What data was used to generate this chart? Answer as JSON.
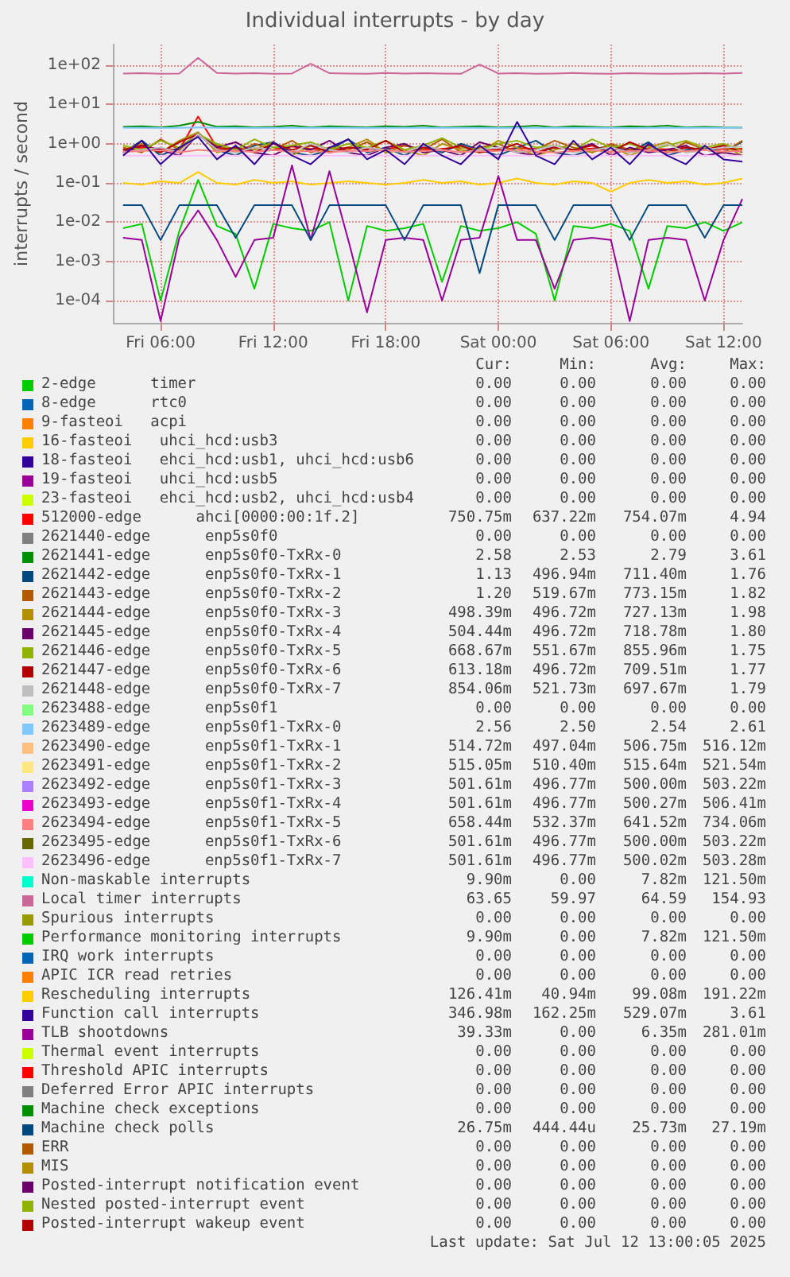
{
  "chart_data": {
    "type": "line",
    "title": "Individual interrupts - by day",
    "ylabel": "interrupts / second",
    "log": "y",
    "grid": true,
    "legend": "bottom",
    "xlim": [
      "2025-07-11T03:30",
      "2025-07-12T13:00"
    ],
    "xticks": [
      {
        "value": "2025-07-11T06:00",
        "label": "Fri 06:00"
      },
      {
        "value": "2025-07-11T12:00",
        "label": "Fri 12:00"
      },
      {
        "value": "2025-07-11T18:00",
        "label": "Fri 18:00"
      },
      {
        "value": "2025-07-12T00:00",
        "label": "Sat 00:00"
      },
      {
        "value": "2025-07-12T06:00",
        "label": "Sat 06:00"
      },
      {
        "value": "2025-07-12T12:00",
        "label": "Sat 12:00"
      }
    ],
    "ylim": [
      2.7e-05,
      340
    ],
    "yticks": [
      {
        "value": 0.0001,
        "label": "1e-04"
      },
      {
        "value": 0.001,
        "label": "1e-03"
      },
      {
        "value": 0.01,
        "label": "1e-02"
      },
      {
        "value": 0.1,
        "label": "1e-01"
      },
      {
        "value": 1,
        "label": "1e+00"
      },
      {
        "value": 10,
        "label": "1e+01"
      },
      {
        "value": 100,
        "label": "1e+02"
      }
    ],
    "x": [
      "2025-07-11T04:00",
      "2025-07-11T05:00",
      "2025-07-11T06:00",
      "2025-07-11T07:00",
      "2025-07-11T08:00",
      "2025-07-11T09:00",
      "2025-07-11T10:00",
      "2025-07-11T11:00",
      "2025-07-11T12:00",
      "2025-07-11T13:00",
      "2025-07-11T14:00",
      "2025-07-11T15:00",
      "2025-07-11T16:00",
      "2025-07-11T17:00",
      "2025-07-11T18:00",
      "2025-07-11T19:00",
      "2025-07-11T20:00",
      "2025-07-11T21:00",
      "2025-07-11T22:00",
      "2025-07-11T23:00",
      "2025-07-12T00:00",
      "2025-07-12T01:00",
      "2025-07-12T02:00",
      "2025-07-12T03:00",
      "2025-07-12T04:00",
      "2025-07-12T05:00",
      "2025-07-12T06:00",
      "2025-07-12T07:00",
      "2025-07-12T08:00",
      "2025-07-12T09:00",
      "2025-07-12T10:00",
      "2025-07-12T11:00",
      "2025-07-12T12:00",
      "2025-07-12T13:00"
    ],
    "series": [
      {
        "name": "2-edge      timer",
        "color": "#00cc00",
        "values": [
          null,
          null,
          null,
          null,
          null,
          null,
          null,
          null,
          null,
          null,
          null,
          null,
          null,
          null,
          null,
          null,
          null,
          null,
          null,
          null,
          null,
          null,
          null,
          null,
          null,
          null,
          null,
          null,
          null,
          null,
          null,
          null,
          null,
          null
        ]
      },
      {
        "name": "8-edge      rtc0",
        "color": "#0066b3",
        "values": [
          null,
          null,
          null,
          null,
          null,
          null,
          null,
          null,
          null,
          null,
          null,
          null,
          null,
          null,
          null,
          null,
          null,
          null,
          null,
          null,
          null,
          null,
          null,
          null,
          null,
          null,
          null,
          null,
          null,
          null,
          null,
          null,
          null,
          null
        ]
      },
      {
        "name": "9-fasteoi   acpi",
        "color": "#ff8000",
        "values": [
          null,
          null,
          null,
          null,
          null,
          null,
          null,
          null,
          null,
          null,
          null,
          null,
          null,
          null,
          null,
          null,
          null,
          null,
          null,
          null,
          null,
          null,
          null,
          null,
          null,
          null,
          null,
          null,
          null,
          null,
          null,
          null,
          null,
          null
        ]
      },
      {
        "name": "16-fasteoi   uhci_hcd:usb3",
        "color": "#ffcc00",
        "values": [
          null,
          null,
          null,
          null,
          null,
          null,
          null,
          null,
          null,
          null,
          null,
          null,
          null,
          null,
          null,
          null,
          null,
          null,
          null,
          null,
          null,
          null,
          null,
          null,
          null,
          null,
          null,
          null,
          null,
          null,
          null,
          null,
          null,
          null
        ]
      },
      {
        "name": "18-fasteoi   ehci_hcd:usb1, uhci_hcd:usb6",
        "color": "#330099",
        "values": [
          null,
          null,
          null,
          null,
          null,
          null,
          null,
          null,
          null,
          null,
          null,
          null,
          null,
          null,
          null,
          null,
          null,
          null,
          null,
          null,
          null,
          null,
          null,
          null,
          null,
          null,
          null,
          null,
          null,
          null,
          null,
          null,
          null,
          null
        ]
      },
      {
        "name": "19-fasteoi   uhci_hcd:usb5",
        "color": "#990099",
        "values": [
          null,
          null,
          null,
          null,
          null,
          null,
          null,
          null,
          null,
          null,
          null,
          null,
          null,
          null,
          null,
          null,
          null,
          null,
          null,
          null,
          null,
          null,
          null,
          null,
          null,
          null,
          null,
          null,
          null,
          null,
          null,
          null,
          null,
          null
        ]
      },
      {
        "name": "23-fasteoi   ehci_hcd:usb2, uhci_hcd:usb4",
        "color": "#ccff00",
        "values": [
          null,
          null,
          null,
          null,
          null,
          null,
          null,
          null,
          null,
          null,
          null,
          null,
          null,
          null,
          null,
          null,
          null,
          null,
          null,
          null,
          null,
          null,
          null,
          null,
          null,
          null,
          null,
          null,
          null,
          null,
          null,
          null,
          null,
          null
        ]
      },
      {
        "name": "512000-edge      ahci[0000:00:1f.2]",
        "color": "#ff0000",
        "values": [
          0.7,
          0.8,
          0.75,
          0.7,
          4.94,
          0.8,
          0.72,
          0.78,
          0.7,
          0.85,
          0.74,
          0.7,
          0.8,
          0.76,
          0.72,
          0.9,
          0.7,
          0.75,
          0.8,
          0.72,
          0.7,
          0.78,
          0.74,
          0.8,
          0.7,
          0.76,
          0.82,
          0.7,
          0.75,
          0.72,
          0.8,
          0.7,
          0.74,
          0.75
        ]
      },
      {
        "name": "2621440-edge      enp5s0f0",
        "color": "#808080",
        "values": [
          null,
          null,
          null,
          null,
          null,
          null,
          null,
          null,
          null,
          null,
          null,
          null,
          null,
          null,
          null,
          null,
          null,
          null,
          null,
          null,
          null,
          null,
          null,
          null,
          null,
          null,
          null,
          null,
          null,
          null,
          null,
          null,
          null,
          null
        ]
      },
      {
        "name": "2621441-edge      enp5s0f0-TxRx-0",
        "color": "#008f00",
        "values": [
          2.7,
          2.8,
          2.6,
          2.9,
          3.61,
          2.7,
          2.8,
          2.6,
          2.7,
          2.9,
          2.6,
          2.8,
          2.7,
          2.6,
          2.8,
          2.7,
          2.9,
          2.6,
          2.7,
          2.8,
          2.6,
          2.7,
          2.9,
          2.6,
          2.8,
          2.7,
          2.6,
          2.8,
          2.7,
          2.9,
          2.6,
          2.7,
          2.6,
          2.58
        ]
      },
      {
        "name": "2621442-edge      enp5s0f0-TxRx-1",
        "color": "#00487d",
        "values": [
          0.6,
          1.2,
          0.5,
          0.8,
          1.76,
          0.7,
          0.5,
          0.9,
          1.1,
          0.6,
          0.5,
          0.7,
          1.3,
          0.6,
          0.8,
          0.5,
          0.9,
          0.6,
          1.0,
          0.7,
          0.5,
          0.8,
          1.2,
          0.6,
          0.5,
          0.7,
          0.9,
          0.6,
          1.1,
          0.5,
          0.7,
          0.8,
          0.6,
          1.13
        ]
      },
      {
        "name": "2621443-edge      enp5s0f0-TxRx-2",
        "color": "#b35a00",
        "values": [
          0.8,
          0.6,
          1.3,
          0.7,
          1.82,
          0.9,
          0.6,
          1.0,
          0.7,
          1.2,
          0.6,
          0.8,
          0.7,
          1.1,
          0.6,
          0.9,
          0.7,
          1.3,
          0.6,
          0.8,
          1.0,
          0.6,
          0.7,
          1.2,
          0.8,
          0.6,
          1.0,
          0.7,
          0.9,
          0.6,
          1.1,
          0.7,
          0.6,
          1.2
        ]
      },
      {
        "name": "2621444-edge      enp5s0f0-TxRx-3",
        "color": "#b38f00",
        "values": [
          0.7,
          1.0,
          0.6,
          1.2,
          1.98,
          0.6,
          0.8,
          0.7,
          1.1,
          0.5,
          0.9,
          0.6,
          0.8,
          1.3,
          0.6,
          0.7,
          0.5,
          1.0,
          0.7,
          0.6,
          1.2,
          0.8,
          0.5,
          0.7,
          1.0,
          0.6,
          0.9,
          0.5,
          0.8,
          1.1,
          0.6,
          0.7,
          0.9,
          0.5
        ]
      },
      {
        "name": "2621445-edge      enp5s0f0-TxRx-4",
        "color": "#6b006b",
        "values": [
          0.6,
          0.9,
          0.7,
          0.5,
          1.8,
          0.8,
          1.1,
          0.6,
          0.5,
          0.9,
          0.7,
          1.2,
          0.6,
          0.5,
          0.8,
          1.0,
          0.6,
          0.7,
          0.5,
          1.1,
          0.8,
          0.6,
          0.5,
          0.9,
          0.7,
          1.0,
          0.5,
          0.8,
          0.6,
          0.7,
          0.9,
          0.5,
          0.6,
          0.5
        ]
      },
      {
        "name": "2621446-edge      enp5s0f0-TxRx-5",
        "color": "#8fb300",
        "values": [
          0.9,
          0.7,
          1.2,
          0.8,
          1.75,
          1.0,
          0.7,
          1.3,
          0.8,
          0.9,
          1.1,
          0.7,
          1.0,
          0.8,
          1.2,
          0.7,
          0.9,
          1.4,
          0.8,
          0.7,
          1.0,
          1.2,
          0.8,
          0.9,
          0.7,
          1.3,
          0.8,
          1.0,
          0.7,
          0.9,
          1.2,
          0.8,
          1.0,
          0.67
        ]
      },
      {
        "name": "2621447-edge      enp5s0f0-TxRx-6",
        "color": "#b30000",
        "values": [
          0.7,
          0.9,
          0.6,
          1.1,
          1.77,
          0.7,
          0.8,
          0.6,
          1.0,
          0.7,
          0.9,
          0.6,
          0.8,
          0.7,
          1.2,
          0.6,
          0.8,
          0.7,
          0.9,
          0.6,
          0.7,
          1.0,
          0.6,
          0.8,
          0.7,
          0.9,
          0.6,
          1.1,
          0.7,
          0.6,
          0.8,
          0.7,
          0.9,
          0.61
        ]
      },
      {
        "name": "2621448-edge      enp5s0f0-TxRx-7",
        "color": "#bebebe",
        "values": [
          0.6,
          0.7,
          0.8,
          0.6,
          1.79,
          0.7,
          0.6,
          0.8,
          0.7,
          0.6,
          1.0,
          0.7,
          0.6,
          0.8,
          0.7,
          0.6,
          0.9,
          0.7,
          0.6,
          0.7,
          0.8,
          0.6,
          0.7,
          0.9,
          0.6,
          0.7,
          0.8,
          0.6,
          0.7,
          1.0,
          0.6,
          0.7,
          0.8,
          0.85
        ]
      },
      {
        "name": "2623488-edge      enp5s0f1",
        "color": "#80ff80",
        "values": [
          null,
          null,
          null,
          null,
          null,
          null,
          null,
          null,
          null,
          null,
          null,
          null,
          null,
          null,
          null,
          null,
          null,
          null,
          null,
          null,
          null,
          null,
          null,
          null,
          null,
          null,
          null,
          null,
          null,
          null,
          null,
          null,
          null,
          null
        ]
      },
      {
        "name": "2623489-edge      enp5s0f1-TxRx-0",
        "color": "#80c9ff",
        "values": [
          2.54,
          2.54,
          2.53,
          2.54,
          2.61,
          2.54,
          2.54,
          2.53,
          2.54,
          2.54,
          2.55,
          2.54,
          2.54,
          2.53,
          2.54,
          2.54,
          2.54,
          2.55,
          2.54,
          2.54,
          2.53,
          2.54,
          2.54,
          2.54,
          2.55,
          2.54,
          2.54,
          2.53,
          2.54,
          2.54,
          2.54,
          2.55,
          2.54,
          2.56
        ]
      },
      {
        "name": "2623490-edge      enp5s0f1-TxRx-1",
        "color": "#ffc080",
        "values": [
          null,
          null,
          null,
          null,
          null,
          null,
          null,
          null,
          null,
          null,
          null,
          null,
          null,
          null,
          null,
          null,
          null,
          null,
          null,
          null,
          null,
          null,
          null,
          null,
          null,
          null,
          null,
          null,
          null,
          null,
          null,
          null,
          null,
          null
        ]
      },
      {
        "name": "2623491-edge      enp5s0f1-TxRx-2",
        "color": "#ffe680",
        "values": [
          null,
          null,
          null,
          null,
          null,
          null,
          null,
          null,
          null,
          null,
          null,
          null,
          null,
          null,
          null,
          null,
          null,
          null,
          null,
          null,
          null,
          null,
          null,
          null,
          null,
          null,
          null,
          null,
          null,
          null,
          null,
          null,
          null,
          null
        ]
      },
      {
        "name": "2623492-edge      enp5s0f1-TxRx-3",
        "color": "#aa80ff",
        "values": [
          null,
          null,
          null,
          null,
          null,
          null,
          null,
          null,
          null,
          null,
          null,
          null,
          null,
          null,
          null,
          null,
          null,
          null,
          null,
          null,
          null,
          null,
          null,
          null,
          null,
          null,
          null,
          null,
          null,
          null,
          null,
          null,
          null,
          null
        ]
      },
      {
        "name": "2623493-edge      enp5s0f1-TxRx-4",
        "color": "#ee00cc",
        "values": [
          null,
          null,
          null,
          null,
          null,
          null,
          null,
          null,
          null,
          null,
          null,
          null,
          null,
          null,
          null,
          null,
          null,
          null,
          null,
          null,
          null,
          null,
          null,
          null,
          null,
          null,
          null,
          null,
          null,
          null,
          null,
          null,
          null,
          null
        ]
      },
      {
        "name": "2623494-edge      enp5s0f1-TxRx-5",
        "color": "#ff8080",
        "values": [
          0.62,
          0.65,
          0.68,
          0.6,
          0.7,
          0.64,
          0.66,
          0.62,
          0.69,
          0.63,
          0.65,
          0.6,
          0.67,
          0.64,
          0.7,
          0.62,
          0.65,
          0.68,
          0.61,
          0.64,
          0.66,
          0.7,
          0.63,
          0.6,
          0.65,
          0.68,
          0.62,
          0.64,
          0.67,
          0.61,
          0.65,
          0.69,
          0.63,
          0.66
        ]
      },
      {
        "name": "2623495-edge      enp5s0f1-TxRx-6",
        "color": "#666600",
        "values": [
          null,
          null,
          null,
          null,
          null,
          null,
          null,
          null,
          null,
          null,
          null,
          null,
          null,
          null,
          null,
          null,
          null,
          null,
          null,
          null,
          null,
          null,
          null,
          null,
          null,
          null,
          null,
          null,
          null,
          null,
          null,
          null,
          null,
          null
        ]
      },
      {
        "name": "2623496-edge      enp5s0f1-TxRx-7",
        "color": "#ffbfff",
        "values": [
          0.5,
          0.5,
          0.5,
          0.5,
          0.5,
          0.5,
          0.5,
          0.5,
          0.5,
          0.5,
          0.5,
          0.5,
          0.5,
          0.5,
          0.5,
          0.5,
          0.5,
          0.5,
          0.5,
          0.5,
          0.5,
          0.5,
          0.5,
          0.5,
          0.5,
          0.5,
          0.5,
          0.5,
          0.5,
          0.5,
          0.5,
          0.5,
          0.5,
          0.5
        ]
      },
      {
        "name": "Non-maskable interrupts",
        "color": "#00ffcc",
        "values": [
          null,
          null,
          null,
          null,
          null,
          null,
          null,
          null,
          null,
          null,
          null,
          null,
          null,
          null,
          null,
          null,
          null,
          null,
          null,
          null,
          null,
          null,
          null,
          null,
          null,
          null,
          null,
          null,
          null,
          null,
          null,
          null,
          null,
          null
        ]
      },
      {
        "name": "Local timer interrupts",
        "color": "#cc6699",
        "values": [
          62,
          63,
          61,
          62,
          154.93,
          64,
          62,
          63,
          61,
          62,
          110,
          63,
          62,
          61,
          64,
          62,
          63,
          62,
          61,
          105,
          62,
          63,
          61,
          62,
          64,
          62,
          61,
          63,
          62,
          61,
          62,
          63,
          62,
          63.65
        ]
      },
      {
        "name": "Spurious interrupts",
        "color": "#999900",
        "values": [
          null,
          null,
          null,
          null,
          null,
          null,
          null,
          null,
          null,
          null,
          null,
          null,
          null,
          null,
          null,
          null,
          null,
          null,
          null,
          null,
          null,
          null,
          null,
          null,
          null,
          null,
          null,
          null,
          null,
          null,
          null,
          null,
          null,
          null
        ]
      },
      {
        "name": "Performance monitoring interrupts",
        "color": "#00cc00",
        "values": [
          0.007,
          0.009,
          0.0001,
          0.006,
          0.12,
          0.008,
          0.005,
          0.0002,
          0.009,
          0.007,
          0.006,
          0.01,
          0.0001,
          0.008,
          0.006,
          0.007,
          0.009,
          0.0003,
          0.008,
          0.006,
          0.007,
          0.01,
          0.005,
          0.0001,
          0.008,
          0.007,
          0.009,
          0.006,
          0.0002,
          0.008,
          0.007,
          0.01,
          0.006,
          0.0099
        ]
      },
      {
        "name": "IRQ work interrupts",
        "color": "#0066b3",
        "values": [
          null,
          null,
          null,
          null,
          null,
          null,
          null,
          null,
          null,
          null,
          null,
          null,
          null,
          null,
          null,
          null,
          null,
          null,
          null,
          null,
          null,
          null,
          null,
          null,
          null,
          null,
          null,
          null,
          null,
          null,
          null,
          null,
          null,
          null
        ]
      },
      {
        "name": "APIC ICR read retries",
        "color": "#ff8000",
        "values": [
          null,
          null,
          null,
          null,
          null,
          null,
          null,
          null,
          null,
          null,
          null,
          null,
          null,
          null,
          null,
          null,
          null,
          null,
          null,
          null,
          null,
          null,
          null,
          null,
          null,
          null,
          null,
          null,
          null,
          null,
          null,
          null,
          null,
          null
        ]
      },
      {
        "name": "Rescheduling interrupts",
        "color": "#ffcc00",
        "values": [
          0.1,
          0.09,
          0.11,
          0.1,
          0.19,
          0.1,
          0.09,
          0.12,
          0.1,
          0.11,
          0.09,
          0.1,
          0.11,
          0.1,
          0.09,
          0.1,
          0.12,
          0.1,
          0.11,
          0.09,
          0.1,
          0.13,
          0.1,
          0.09,
          0.11,
          0.1,
          0.06,
          0.1,
          0.12,
          0.1,
          0.11,
          0.09,
          0.1,
          0.13
        ]
      },
      {
        "name": "Function call interrupts",
        "color": "#330099",
        "values": [
          0.5,
          1.2,
          0.3,
          0.8,
          1.5,
          0.4,
          0.9,
          0.3,
          1.1,
          0.5,
          0.3,
          0.8,
          1.3,
          0.4,
          0.7,
          0.3,
          1.0,
          0.5,
          0.3,
          0.9,
          0.4,
          3.61,
          0.5,
          0.3,
          1.2,
          0.4,
          0.8,
          0.3,
          1.0,
          0.5,
          0.3,
          0.9,
          0.4,
          0.35
        ]
      },
      {
        "name": "TLB shootdowns",
        "color": "#990099",
        "values": [
          0.004,
          0.0035,
          3e-05,
          0.004,
          0.02,
          0.0035,
          0.0004,
          0.0035,
          0.004,
          0.28,
          0.0035,
          0.2,
          0.0035,
          5e-05,
          0.0035,
          0.004,
          0.0035,
          0.0001,
          0.0035,
          0.004,
          0.15,
          0.0035,
          0.0035,
          0.0002,
          0.0035,
          0.004,
          0.0035,
          3e-05,
          0.0035,
          0.004,
          0.0035,
          0.0001,
          0.0035,
          0.039
        ]
      },
      {
        "name": "Thermal event interrupts",
        "color": "#ccff00",
        "values": [
          null,
          null,
          null,
          null,
          null,
          null,
          null,
          null,
          null,
          null,
          null,
          null,
          null,
          null,
          null,
          null,
          null,
          null,
          null,
          null,
          null,
          null,
          null,
          null,
          null,
          null,
          null,
          null,
          null,
          null,
          null,
          null,
          null,
          null
        ]
      },
      {
        "name": "Threshold APIC interrupts",
        "color": "#ff0000",
        "values": [
          null,
          null,
          null,
          null,
          null,
          null,
          null,
          null,
          null,
          null,
          null,
          null,
          null,
          null,
          null,
          null,
          null,
          null,
          null,
          null,
          null,
          null,
          null,
          null,
          null,
          null,
          null,
          null,
          null,
          null,
          null,
          null,
          null,
          null
        ]
      },
      {
        "name": "Deferred Error APIC interrupts",
        "color": "#808080",
        "values": [
          null,
          null,
          null,
          null,
          null,
          null,
          null,
          null,
          null,
          null,
          null,
          null,
          null,
          null,
          null,
          null,
          null,
          null,
          null,
          null,
          null,
          null,
          null,
          null,
          null,
          null,
          null,
          null,
          null,
          null,
          null,
          null,
          null,
          null
        ]
      },
      {
        "name": "Machine check exceptions",
        "color": "#008f00",
        "values": [
          null,
          null,
          null,
          null,
          null,
          null,
          null,
          null,
          null,
          null,
          null,
          null,
          null,
          null,
          null,
          null,
          null,
          null,
          null,
          null,
          null,
          null,
          null,
          null,
          null,
          null,
          null,
          null,
          null,
          null,
          null,
          null,
          null,
          null
        ]
      },
      {
        "name": "Machine check polls",
        "color": "#00487d",
        "values": [
          0.027,
          0.027,
          0.0035,
          0.027,
          0.027,
          0.027,
          0.004,
          0.027,
          0.027,
          0.027,
          0.0035,
          0.027,
          0.027,
          0.027,
          0.027,
          0.0035,
          0.027,
          0.027,
          0.027,
          0.0005,
          0.027,
          0.027,
          0.027,
          0.0035,
          0.027,
          0.027,
          0.027,
          0.0035,
          0.027,
          0.027,
          0.027,
          0.004,
          0.027,
          0.027
        ]
      },
      {
        "name": "ERR",
        "color": "#b35a00",
        "values": [
          null,
          null,
          null,
          null,
          null,
          null,
          null,
          null,
          null,
          null,
          null,
          null,
          null,
          null,
          null,
          null,
          null,
          null,
          null,
          null,
          null,
          null,
          null,
          null,
          null,
          null,
          null,
          null,
          null,
          null,
          null,
          null,
          null,
          null
        ]
      },
      {
        "name": "MIS",
        "color": "#b38f00",
        "values": [
          null,
          null,
          null,
          null,
          null,
          null,
          null,
          null,
          null,
          null,
          null,
          null,
          null,
          null,
          null,
          null,
          null,
          null,
          null,
          null,
          null,
          null,
          null,
          null,
          null,
          null,
          null,
          null,
          null,
          null,
          null,
          null,
          null,
          null
        ]
      },
      {
        "name": "Posted-interrupt notification event",
        "color": "#6b006b",
        "values": [
          null,
          null,
          null,
          null,
          null,
          null,
          null,
          null,
          null,
          null,
          null,
          null,
          null,
          null,
          null,
          null,
          null,
          null,
          null,
          null,
          null,
          null,
          null,
          null,
          null,
          null,
          null,
          null,
          null,
          null,
          null,
          null,
          null,
          null
        ]
      },
      {
        "name": "Nested posted-interrupt event",
        "color": "#8fb300",
        "values": [
          null,
          null,
          null,
          null,
          null,
          null,
          null,
          null,
          null,
          null,
          null,
          null,
          null,
          null,
          null,
          null,
          null,
          null,
          null,
          null,
          null,
          null,
          null,
          null,
          null,
          null,
          null,
          null,
          null,
          null,
          null,
          null,
          null,
          null
        ]
      },
      {
        "name": "Posted-interrupt wakeup event",
        "color": "#b30000",
        "values": [
          null,
          null,
          null,
          null,
          null,
          null,
          null,
          null,
          null,
          null,
          null,
          null,
          null,
          null,
          null,
          null,
          null,
          null,
          null,
          null,
          null,
          null,
          null,
          null,
          null,
          null,
          null,
          null,
          null,
          null,
          null,
          null,
          null,
          null
        ]
      }
    ],
    "annotations": [
      "Cur:",
      "Min:",
      "Avg:",
      "Max:",
      "0.00 0.00 0.00 0.00",
      "0.00 0.00 0.00 0.00",
      "0.00 0.00 0.00 0.00",
      "0.00 0.00 0.00 0.00",
      "0.00 0.00 0.00 0.00",
      "0.00 0.00 0.00 0.00",
      "0.00 0.00 0.00 0.00",
      "750.75m 637.22m 754.07m 4.94",
      "0.00 0.00 0.00 0.00",
      "2.58 2.53 2.79 3.61",
      "1.13 496.94m 711.40m 1.76",
      "1.20 519.67m 773.15m 1.82",
      "498.39m 496.72m 727.13m 1.98",
      "504.44m 496.72m 718.78m 1.80",
      "668.67m 551.67m 855.96m 1.75",
      "613.18m 496.72m 709.51m 1.77",
      "854.06m 521.73m 697.67m 1.79",
      "0.00 0.00 0.00 0.00",
      "2.56 2.50 2.54 2.61",
      "514.72m 497.04m 506.75m 516.12m",
      "515.05m 510.40m 515.64m 521.54m",
      "501.61m 496.77m 500.00m 503.22m",
      "501.61m 496.77m 500.27m 506.41m",
      "658.44m 532.37m 641.52m 734.06m",
      "501.61m 496.77m 500.00m 503.22m",
      "501.61m 496.77m 500.02m 503.28m",
      "9.90m 0.00 7.82m 121.50m",
      "63.65 59.97 64.59 154.93",
      "0.00 0.00 0.00 0.00",
      "9.90m 0.00 7.82m 121.50m",
      "0.00 0.00 0.00 0.00",
      "0.00 0.00 0.00 0.00",
      "126.41m 40.94m 99.08m 191.22m",
      "346.98m 162.25m 529.07m 3.61",
      "39.33m 0.00 6.35m 281.01m",
      "0.00 0.00 0.00 0.00",
      "0.00 0.00 0.00 0.00",
      "0.00 0.00 0.00 0.00",
      "0.00 0.00 0.00 0.00",
      "26.75m 444.44u 25.73m 27.19m",
      "0.00 0.00 0.00 0.00",
      "0.00 0.00 0.00 0.00",
      "0.00 0.00 0.00 0.00",
      "0.00 0.00 0.00 0.00",
      "0.00 0.00 0.00 0.00",
      "Last update: Sat Jul 12 13:00:05 2025"
    ]
  }
}
